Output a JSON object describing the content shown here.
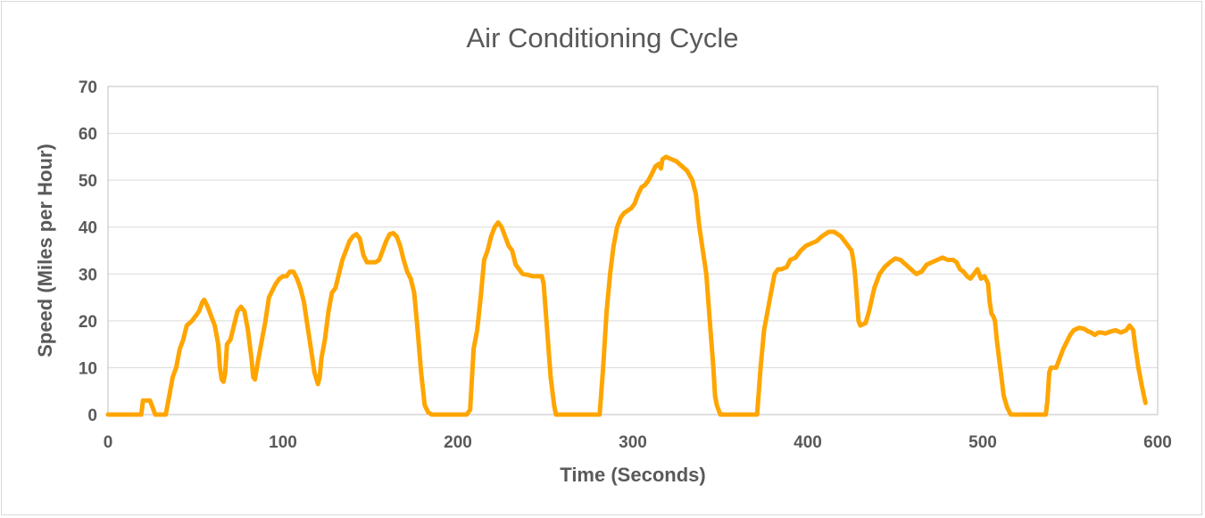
{
  "chart_data": {
    "type": "line",
    "title": "Air Conditioning Cycle",
    "xlabel": "Time (Seconds)",
    "ylabel": "Speed (Miles per Hour)",
    "xlim": [
      0,
      600
    ],
    "ylim": [
      0,
      70
    ],
    "xticks": [
      0,
      100,
      200,
      300,
      400,
      500,
      600
    ],
    "yticks": [
      0,
      10,
      20,
      30,
      40,
      50,
      60,
      70
    ],
    "grid": "horizontal",
    "legend": "none",
    "series": [
      {
        "color": "#FFA500",
        "points": [
          [
            0,
            0
          ],
          [
            19,
            0
          ],
          [
            20,
            3
          ],
          [
            22,
            3
          ],
          [
            24,
            3
          ],
          [
            26,
            1
          ],
          [
            27,
            0
          ],
          [
            33,
            0
          ],
          [
            35,
            4
          ],
          [
            37,
            8
          ],
          [
            39,
            10
          ],
          [
            41,
            14
          ],
          [
            43,
            16
          ],
          [
            45,
            19
          ],
          [
            48,
            20
          ],
          [
            50,
            21
          ],
          [
            52,
            22
          ],
          [
            54,
            24
          ],
          [
            55,
            24.5
          ],
          [
            57,
            23
          ],
          [
            59,
            21
          ],
          [
            61,
            19
          ],
          [
            63,
            15
          ],
          [
            64,
            10
          ],
          [
            65,
            7.5
          ],
          [
            66,
            7
          ],
          [
            67,
            9
          ],
          [
            68,
            15
          ],
          [
            70,
            16
          ],
          [
            72,
            19
          ],
          [
            74,
            22
          ],
          [
            76,
            23
          ],
          [
            78,
            22
          ],
          [
            80,
            18
          ],
          [
            82,
            12
          ],
          [
            83,
            8
          ],
          [
            84,
            7.5
          ],
          [
            86,
            12
          ],
          [
            88,
            16
          ],
          [
            90,
            20
          ],
          [
            92,
            25
          ],
          [
            94,
            26.5
          ],
          [
            96,
            28
          ],
          [
            98,
            29
          ],
          [
            100,
            29.5
          ],
          [
            102,
            29.5
          ],
          [
            104,
            30.5
          ],
          [
            106,
            30.5
          ],
          [
            108,
            29
          ],
          [
            110,
            27
          ],
          [
            112,
            24
          ],
          [
            114,
            19
          ],
          [
            116,
            14
          ],
          [
            118,
            9
          ],
          [
            120,
            6.5
          ],
          [
            121,
            8
          ],
          [
            122,
            12
          ],
          [
            124,
            16
          ],
          [
            126,
            22
          ],
          [
            128,
            26
          ],
          [
            130,
            27
          ],
          [
            132,
            30
          ],
          [
            134,
            33
          ],
          [
            136,
            35
          ],
          [
            138,
            37
          ],
          [
            140,
            38
          ],
          [
            142,
            38.5
          ],
          [
            144,
            37.5
          ],
          [
            146,
            34
          ],
          [
            148,
            32.5
          ],
          [
            150,
            32.5
          ],
          [
            153,
            32.5
          ],
          [
            155,
            33
          ],
          [
            157,
            35
          ],
          [
            159,
            37
          ],
          [
            161,
            38.5
          ],
          [
            163,
            38.7
          ],
          [
            165,
            38
          ],
          [
            167,
            36
          ],
          [
            169,
            33
          ],
          [
            171,
            30.5
          ],
          [
            173,
            29
          ],
          [
            175,
            26
          ],
          [
            177,
            18
          ],
          [
            179,
            9
          ],
          [
            181,
            2
          ],
          [
            183,
            0.5
          ],
          [
            185,
            0
          ],
          [
            205,
            0
          ],
          [
            207,
            1
          ],
          [
            209,
            14
          ],
          [
            211,
            18
          ],
          [
            213,
            25
          ],
          [
            215,
            33
          ],
          [
            217,
            35
          ],
          [
            219,
            38
          ],
          [
            221,
            40
          ],
          [
            223,
            41
          ],
          [
            225,
            40
          ],
          [
            227,
            38
          ],
          [
            229,
            36
          ],
          [
            231,
            35
          ],
          [
            233,
            32
          ],
          [
            235,
            31
          ],
          [
            237,
            30
          ],
          [
            240,
            29.8
          ],
          [
            243,
            29.5
          ],
          [
            246,
            29.5
          ],
          [
            248,
            29.5
          ],
          [
            249,
            28
          ],
          [
            251,
            18
          ],
          [
            253,
            8
          ],
          [
            255,
            2
          ],
          [
            256,
            0
          ],
          [
            281,
            0
          ],
          [
            283,
            10
          ],
          [
            285,
            22
          ],
          [
            287,
            30
          ],
          [
            289,
            36
          ],
          [
            291,
            40
          ],
          [
            293,
            42
          ],
          [
            295,
            43
          ],
          [
            297,
            43.5
          ],
          [
            299,
            44
          ],
          [
            301,
            45
          ],
          [
            303,
            47
          ],
          [
            305,
            48.5
          ],
          [
            307,
            49
          ],
          [
            309,
            50
          ],
          [
            311,
            51.5
          ],
          [
            313,
            53
          ],
          [
            315,
            53.5
          ],
          [
            316,
            52.5
          ],
          [
            317,
            54.5
          ],
          [
            319,
            55
          ],
          [
            322,
            54.5
          ],
          [
            325,
            54
          ],
          [
            328,
            53
          ],
          [
            331,
            52
          ],
          [
            334,
            50
          ],
          [
            336,
            47
          ],
          [
            338,
            40
          ],
          [
            340,
            35
          ],
          [
            342,
            30
          ],
          [
            344,
            20
          ],
          [
            346,
            10
          ],
          [
            347,
            4
          ],
          [
            348,
            2
          ],
          [
            349,
            1
          ],
          [
            350,
            0
          ],
          [
            371,
            0
          ],
          [
            373,
            10
          ],
          [
            375,
            18
          ],
          [
            377,
            22
          ],
          [
            379,
            26
          ],
          [
            381,
            30
          ],
          [
            383,
            31
          ],
          [
            385,
            31
          ],
          [
            388,
            31.5
          ],
          [
            390,
            33
          ],
          [
            393,
            33.5
          ],
          [
            396,
            35
          ],
          [
            399,
            36
          ],
          [
            402,
            36.5
          ],
          [
            405,
            37
          ],
          [
            408,
            38
          ],
          [
            410,
            38.5
          ],
          [
            412,
            39
          ],
          [
            415,
            39
          ],
          [
            417,
            38.5
          ],
          [
            419,
            38
          ],
          [
            421,
            37
          ],
          [
            423,
            36
          ],
          [
            425,
            35
          ],
          [
            426,
            33
          ],
          [
            427,
            30
          ],
          [
            428,
            25
          ],
          [
            429,
            20
          ],
          [
            430,
            19
          ],
          [
            433,
            19.5
          ],
          [
            435,
            22
          ],
          [
            438,
            27
          ],
          [
            441,
            30
          ],
          [
            444,
            31.5
          ],
          [
            447,
            32.5
          ],
          [
            450,
            33.3
          ],
          [
            453,
            33
          ],
          [
            456,
            32
          ],
          [
            459,
            31
          ],
          [
            462,
            30
          ],
          [
            465,
            30.5
          ],
          [
            468,
            32
          ],
          [
            471,
            32.5
          ],
          [
            474,
            33
          ],
          [
            477,
            33.5
          ],
          [
            480,
            33
          ],
          [
            483,
            33
          ],
          [
            485,
            32.5
          ],
          [
            487,
            31
          ],
          [
            489,
            30.5
          ],
          [
            491,
            29.5
          ],
          [
            493,
            29
          ],
          [
            495,
            30
          ],
          [
            497,
            31
          ],
          [
            499,
            29
          ],
          [
            501,
            29.5
          ],
          [
            503,
            28
          ],
          [
            504,
            24
          ],
          [
            505,
            21.5
          ],
          [
            506,
            21
          ],
          [
            507,
            20
          ],
          [
            508,
            16
          ],
          [
            510,
            10
          ],
          [
            512,
            4
          ],
          [
            514,
            1.5
          ],
          [
            516,
            0
          ],
          [
            536,
            0
          ],
          [
            537,
            3
          ],
          [
            538,
            9
          ],
          [
            539,
            10
          ],
          [
            542,
            10
          ],
          [
            544,
            12
          ],
          [
            546,
            14
          ],
          [
            548,
            15.5
          ],
          [
            550,
            17
          ],
          [
            552,
            18
          ],
          [
            555,
            18.5
          ],
          [
            558,
            18.3
          ],
          [
            560,
            17.8
          ],
          [
            562,
            17.5
          ],
          [
            564,
            17
          ],
          [
            566,
            17.5
          ],
          [
            568,
            17.5
          ],
          [
            570,
            17.3
          ],
          [
            573,
            17.7
          ],
          [
            576,
            18
          ],
          [
            579,
            17.5
          ],
          [
            582,
            18
          ],
          [
            584,
            19
          ],
          [
            586,
            18
          ],
          [
            587,
            15
          ],
          [
            589,
            10
          ],
          [
            591,
            6
          ],
          [
            593,
            2.5
          ]
        ]
      }
    ]
  }
}
